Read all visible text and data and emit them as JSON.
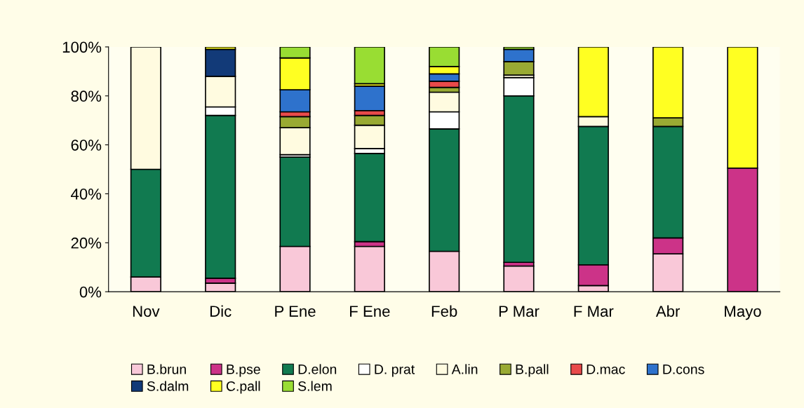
{
  "chart_data": {
    "type": "bar",
    "stacked": true,
    "categories": [
      "Nov",
      "Dic",
      "P Ene",
      "F Ene",
      "Feb",
      "P Mar",
      "F Mar",
      "Abr",
      "Mayo"
    ],
    "series": [
      {
        "name": "B.brun",
        "color": "#f9c8d8",
        "values": [
          6,
          3.5,
          18.5,
          18.5,
          16.5,
          10.5,
          2.5,
          15.5,
          null
        ]
      },
      {
        "name": "B.pse",
        "color": "#cc3388",
        "values": [
          null,
          2,
          null,
          2,
          null,
          1.5,
          8.5,
          6.5,
          50.5
        ]
      },
      {
        "name": "D.elon",
        "color": "#117a50",
        "values": [
          44,
          66.5,
          36.5,
          36,
          50,
          68,
          56.5,
          45.5,
          null
        ]
      },
      {
        "name": "D. prat",
        "color": "#ffffff",
        "values": [
          null,
          3.5,
          1,
          2,
          7,
          7.5,
          null,
          null,
          null
        ]
      },
      {
        "name": "A.lin",
        "color": "#fffbe0",
        "values": [
          50,
          12.5,
          11,
          9.5,
          8,
          1,
          4,
          null,
          null
        ]
      },
      {
        "name": "B.pall",
        "color": "#99aa33",
        "values": [
          null,
          null,
          4.5,
          4,
          2,
          5.5,
          null,
          3.5,
          null
        ]
      },
      {
        "name": "D.mac",
        "color": "#e84a4a",
        "values": [
          null,
          null,
          2,
          2,
          2.5,
          null,
          null,
          null,
          null
        ]
      },
      {
        "name": "D.cons",
        "color": "#2e72cc",
        "values": [
          null,
          null,
          9,
          10,
          3,
          5,
          null,
          null,
          null
        ]
      },
      {
        "name": "S.dalm",
        "color": "#123a78",
        "values": [
          null,
          11,
          null,
          null,
          null,
          null,
          null,
          null,
          null
        ]
      },
      {
        "name": "C.pall",
        "color": "#ffff22",
        "values": [
          null,
          1,
          13,
          1,
          3,
          null,
          28.5,
          29,
          49.5
        ]
      },
      {
        "name": "S.lem",
        "color": "#99dd33",
        "values": [
          null,
          null,
          4.5,
          15,
          8,
          1,
          null,
          null,
          null
        ]
      }
    ],
    "ylim": [
      0,
      100
    ],
    "yticks": [
      {
        "value": 0,
        "label": "0%"
      },
      {
        "value": 20,
        "label": "20%"
      },
      {
        "value": 40,
        "label": "40%"
      },
      {
        "value": 60,
        "label": "60%"
      },
      {
        "value": 80,
        "label": "80%"
      },
      {
        "value": 100,
        "label": "100%"
      }
    ],
    "grid": false,
    "legend": "bottom"
  }
}
